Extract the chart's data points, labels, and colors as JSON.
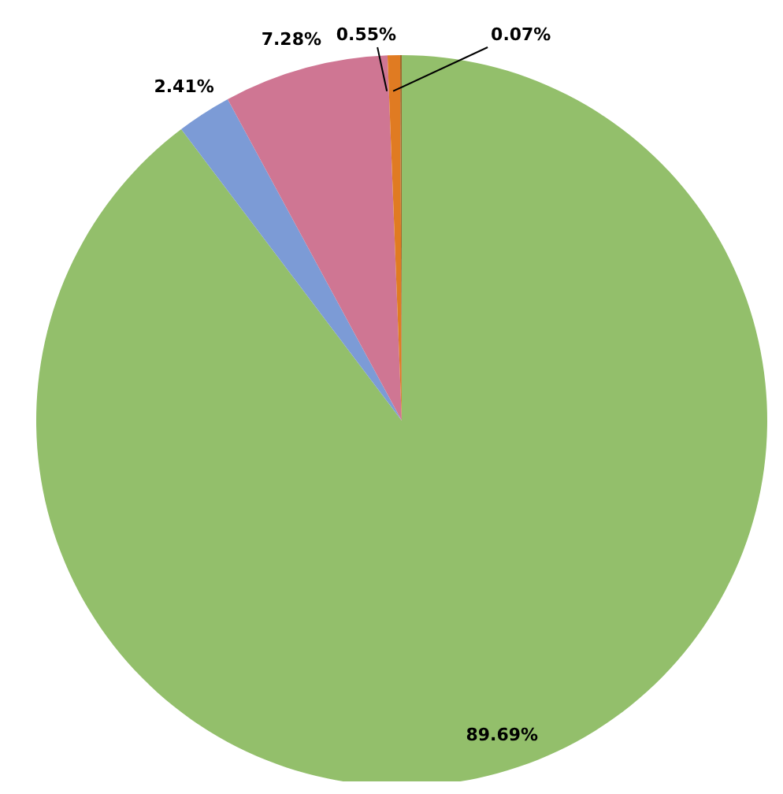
{
  "chart_data": {
    "type": "pie",
    "categories": [
      null,
      null,
      null,
      null,
      null
    ],
    "values": [
      89.69,
      2.41,
      7.28,
      0.55,
      0.07
    ],
    "colors": [
      "#93bf6b",
      "#7c9bd6",
      "#cf7693",
      "#e07b22",
      "#a0692e"
    ],
    "value_labels": [
      "89.69%",
      "2.41%",
      "7.28%",
      "0.55%",
      "0.07%"
    ]
  }
}
